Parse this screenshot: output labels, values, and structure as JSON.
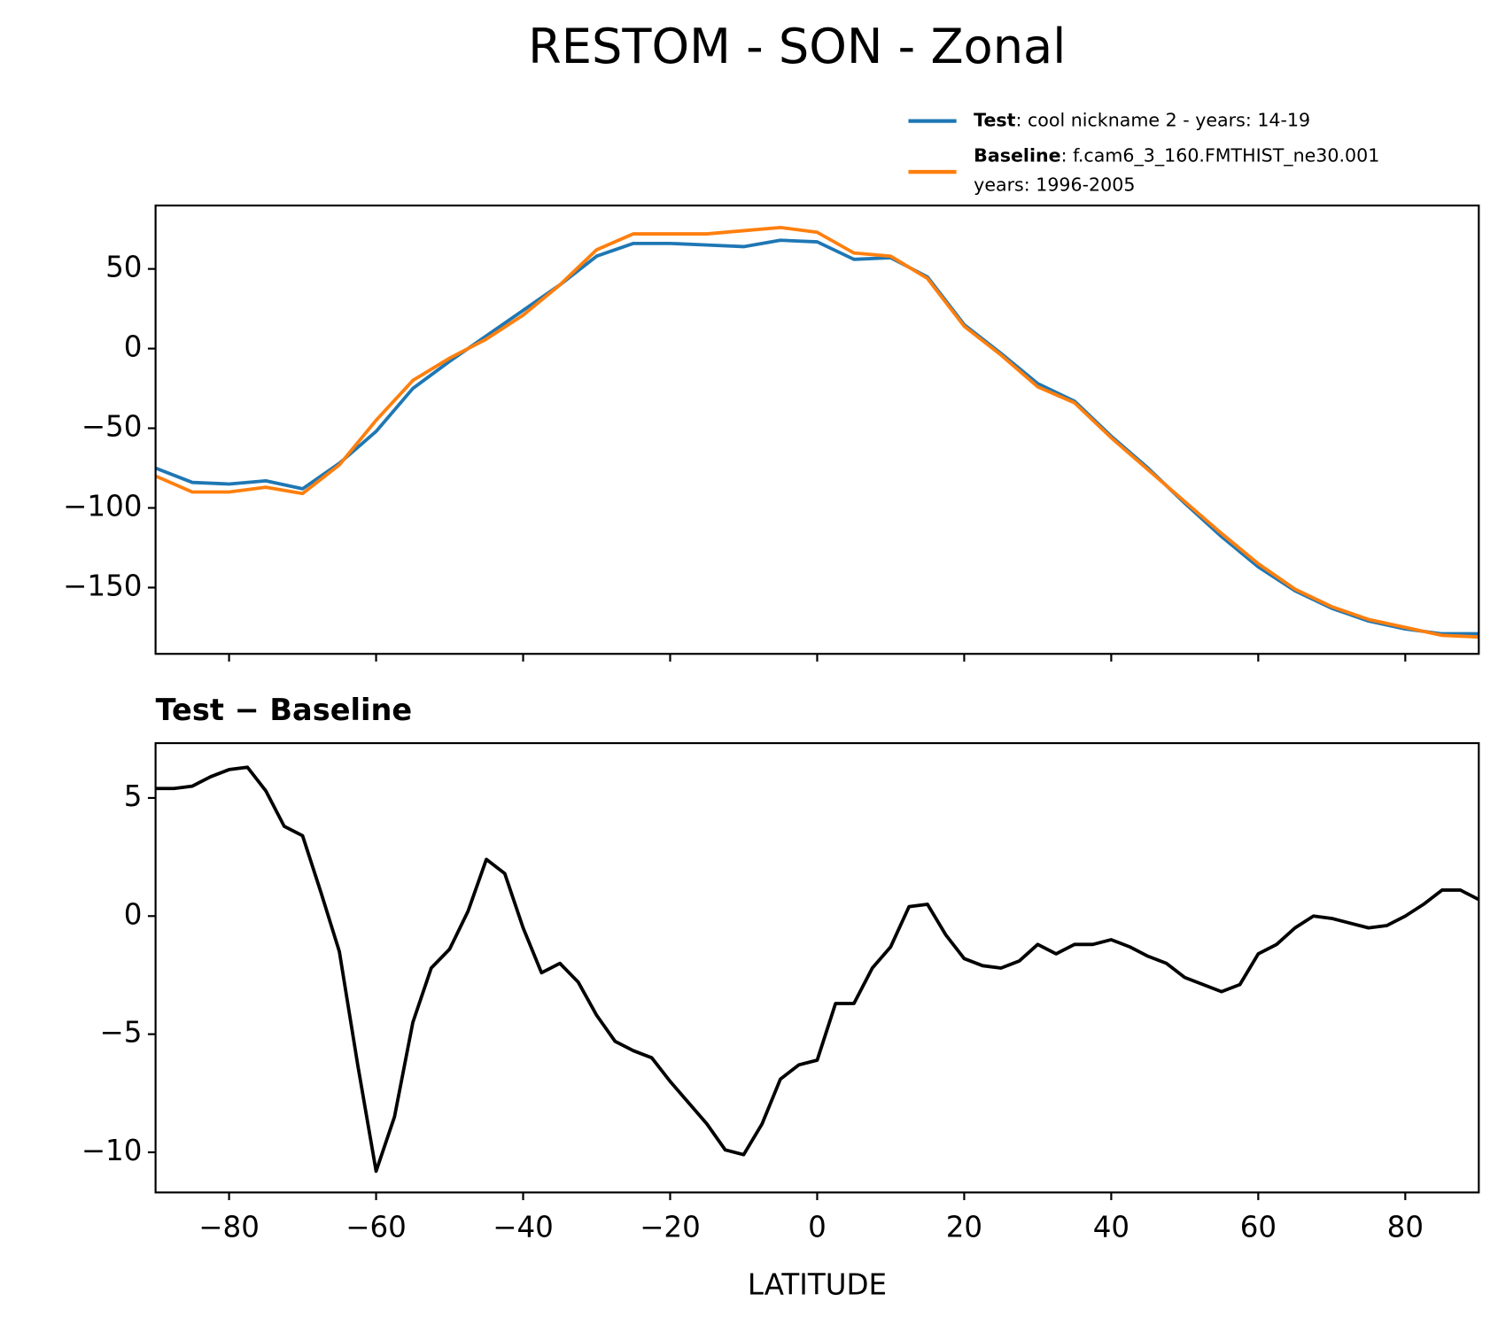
{
  "title": "RESTOM - SON - Zonal",
  "chart_data": [
    {
      "type": "line",
      "x": [
        -90,
        -85,
        -80,
        -75,
        -70,
        -65,
        -60,
        -55,
        -50,
        -45,
        -40,
        -35,
        -30,
        -25,
        -20,
        -15,
        -10,
        -5,
        0,
        5,
        10,
        15,
        20,
        25,
        30,
        35,
        40,
        45,
        50,
        55,
        60,
        65,
        70,
        75,
        80,
        85,
        90
      ],
      "series": [
        {
          "name": "Test",
          "description": [
            ": cool nickname 2 - years: 14-19"
          ],
          "color": "#1f77b4",
          "values": [
            -75,
            -84,
            -85,
            -83,
            -88,
            -72,
            -52,
            -25,
            -8,
            8,
            24,
            40,
            58,
            66,
            66,
            65,
            64,
            68,
            67,
            56,
            57,
            45,
            15,
            -3,
            -22,
            -33,
            -55,
            -75,
            -97,
            -118,
            -137,
            -152,
            -163,
            -171,
            -176,
            -179,
            -179
          ]
        },
        {
          "name": "Baseline",
          "description": [
            ": f.cam6_3_160.FMTHIST_ne30.001",
            "years: 1996-2005"
          ],
          "color": "#ff7f0e",
          "values": [
            -80,
            -90,
            -90,
            -87,
            -91,
            -73,
            -45,
            -20,
            -6,
            6,
            21,
            40,
            62,
            72,
            72,
            72,
            74,
            76,
            73,
            60,
            58,
            44,
            14,
            -4,
            -24,
            -34,
            -56,
            -76,
            -96,
            -116,
            -135,
            -151,
            -162,
            -170,
            -175,
            -180,
            -181
          ]
        }
      ],
      "xlim": [
        -90,
        90
      ],
      "xticks": [
        -80,
        -60,
        -40,
        -20,
        0,
        20,
        40,
        60,
        80
      ],
      "xticklabels": false,
      "ylim": [
        -191.6,
        89.8
      ],
      "yticks": [
        50,
        0,
        {
          "value": -50,
          "label": "−50"
        },
        {
          "value": -100,
          "label": "−100"
        },
        {
          "value": -150,
          "label": "−150"
        }
      ],
      "legend": "upper right"
    },
    {
      "type": "line",
      "title": "Test − Baseline",
      "x": [
        -90,
        -87.5,
        -85,
        -82.5,
        -80,
        -77.5,
        -75,
        -72.5,
        -70,
        -67.5,
        -65,
        -62.5,
        -60,
        -57.5,
        -55,
        -52.5,
        -50,
        -47.5,
        -45,
        -42.5,
        -40,
        -37.5,
        -35,
        -32.5,
        -30,
        -27.5,
        -25,
        -22.5,
        -20,
        -17.5,
        -15,
        -12.5,
        -10,
        -7.5,
        -5,
        -2.5,
        0,
        2.5,
        5,
        7.5,
        10,
        12.5,
        15,
        17.5,
        20,
        22.5,
        25,
        27.5,
        30,
        32.5,
        35,
        37.5,
        40,
        42.5,
        45,
        47.5,
        50,
        52.5,
        55,
        57.5,
        60,
        62.5,
        65,
        67.5,
        70,
        72.5,
        75,
        77.5,
        80,
        82.5,
        85,
        87.5,
        90
      ],
      "series": [
        {
          "color": "#000000",
          "values": [
            5.4,
            5.4,
            5.5,
            5.9,
            6.2,
            6.3,
            5.3,
            3.8,
            3.4,
            1.0,
            -1.5,
            -6.3,
            -10.8,
            -8.5,
            -4.5,
            -2.2,
            -1.4,
            0.2,
            2.4,
            1.8,
            -0.5,
            -2.4,
            -2.0,
            -2.8,
            -4.2,
            -5.3,
            -5.7,
            -6.0,
            -7.0,
            -7.9,
            -8.8,
            -9.9,
            -10.1,
            -8.8,
            -6.9,
            -6.3,
            -6.1,
            -3.7,
            -3.7,
            -2.2,
            -1.3,
            0.4,
            0.5,
            -0.8,
            -1.8,
            -2.1,
            -2.2,
            -1.9,
            -1.2,
            -1.6,
            -1.2,
            -1.2,
            -1.0,
            -1.3,
            -1.7,
            -2.0,
            -2.6,
            -2.9,
            -3.2,
            -2.9,
            -1.6,
            -1.2,
            -0.5,
            0.0,
            -0.1,
            -0.3,
            -0.5,
            -0.4,
            0.0,
            0.5,
            1.1,
            1.1,
            0.7
          ]
        }
      ],
      "xlim": [
        -90,
        90
      ],
      "xticks": [
        {
          "value": -80,
          "label": "−80"
        },
        {
          "value": -60,
          "label": "−60"
        },
        {
          "value": -40,
          "label": "−40"
        },
        {
          "value": -20,
          "label": "−20"
        },
        0,
        20,
        40,
        60,
        80
      ],
      "xticklabels": true,
      "ylim": [
        -11.7,
        7.32
      ],
      "yticks": [
        5,
        0,
        {
          "value": -5,
          "label": "−5"
        },
        {
          "value": -10,
          "label": "−10"
        }
      ],
      "xlabel": "LATITUDE"
    }
  ]
}
